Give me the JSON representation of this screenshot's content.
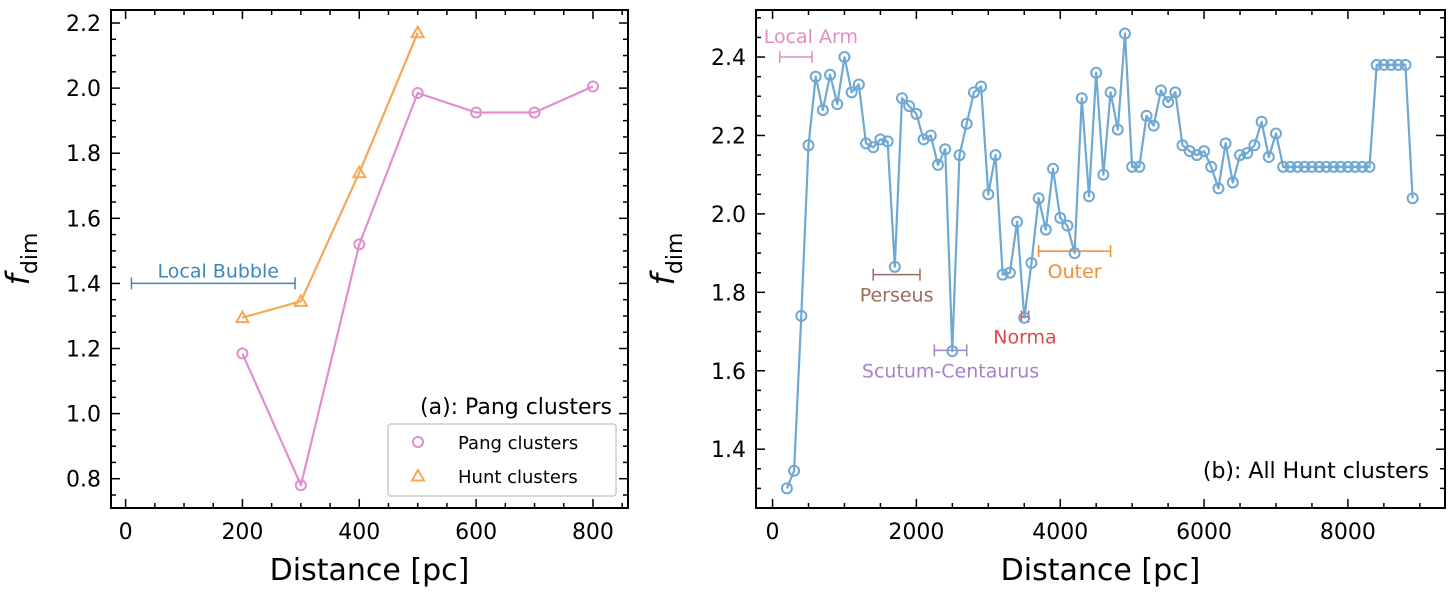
{
  "chart_data": [
    {
      "type": "line",
      "panel_label": "(a): Pang clusters",
      "xlabel": "Distance [pc]",
      "ylabel_main": "f",
      "ylabel_sub": "dim",
      "xlim": [
        -25,
        860
      ],
      "ylim": [
        0.71,
        2.24
      ],
      "xticks": [
        0,
        200,
        400,
        600,
        800
      ],
      "xtick_labels": [
        "0",
        "200",
        "400",
        "600",
        "800"
      ],
      "yticks": [
        0.8,
        1.0,
        1.2,
        1.4,
        1.6,
        1.8,
        2.0,
        2.2
      ],
      "ytick_labels": [
        "0.8",
        "1.0",
        "1.2",
        "1.4",
        "1.6",
        "1.8",
        "2.0",
        "2.2"
      ],
      "series": [
        {
          "name": "Pang clusters",
          "color": "#e08fd0",
          "marker": "circle",
          "x": [
            200,
            300,
            400,
            500,
            600,
            700,
            800
          ],
          "y": [
            1.185,
            0.78,
            1.52,
            1.985,
            1.925,
            1.925,
            2.005
          ]
        },
        {
          "name": "Hunt clusters",
          "color": "#f5a855",
          "marker": "triangle",
          "x": [
            200,
            300,
            400,
            500
          ],
          "y": [
            1.295,
            1.345,
            1.74,
            2.17
          ]
        }
      ],
      "annotations": [
        {
          "text": "Local Bubble",
          "color": "#3e86b8",
          "x_range": [
            10,
            290
          ],
          "y": 1.4
        }
      ],
      "legend": {
        "position": "bottom-right",
        "entries": [
          "Pang clusters",
          "Hunt clusters"
        ]
      }
    },
    {
      "type": "line",
      "panel_label": "(b): All Hunt clusters",
      "xlabel": "Distance [pc]",
      "ylabel_main": "f",
      "ylabel_sub": "dim",
      "xlim": [
        -230,
        9350
      ],
      "ylim": [
        1.25,
        2.52
      ],
      "xticks": [
        0,
        2000,
        4000,
        6000,
        8000
      ],
      "xtick_labels": [
        "0",
        "2000",
        "4000",
        "6000",
        "8000"
      ],
      "yticks": [
        1.4,
        1.6,
        1.8,
        2.0,
        2.2,
        2.4
      ],
      "ytick_labels": [
        "1.4",
        "1.6",
        "1.8",
        "2.0",
        "2.2",
        "2.4"
      ],
      "series": [
        {
          "name": "All Hunt clusters",
          "color": "#6fa8d2",
          "marker": "circle",
          "x": [
            200,
            300,
            400,
            500,
            600,
            700,
            800,
            900,
            1000,
            1100,
            1200,
            1300,
            1400,
            1500,
            1600,
            1700,
            1800,
            1900,
            2000,
            2100,
            2200,
            2300,
            2400,
            2500,
            2600,
            2700,
            2800,
            2900,
            3000,
            3100,
            3200,
            3300,
            3400,
            3500,
            3600,
            3700,
            3800,
            3900,
            4000,
            4100,
            4200,
            4300,
            4400,
            4500,
            4600,
            4700,
            4800,
            4900,
            5000,
            5100,
            5200,
            5300,
            5400,
            5500,
            5600,
            5700,
            5800,
            5900,
            6000,
            6100,
            6200,
            6300,
            6400,
            6500,
            6600,
            6700,
            6800,
            6900,
            7000,
            7100,
            7200,
            7300,
            7400,
            7500,
            7600,
            7700,
            7800,
            7900,
            8000,
            8100,
            8200,
            8300,
            8400,
            8500,
            8600,
            8700,
            8800,
            8900
          ],
          "y": [
            1.3,
            1.345,
            1.74,
            2.175,
            2.35,
            2.265,
            2.355,
            2.28,
            2.4,
            2.31,
            2.33,
            2.18,
            2.17,
            2.19,
            2.185,
            1.865,
            2.295,
            2.275,
            2.255,
            2.19,
            2.2,
            2.125,
            2.165,
            1.65,
            2.15,
            2.23,
            2.31,
            2.325,
            2.05,
            2.15,
            1.845,
            1.85,
            1.98,
            1.735,
            1.875,
            2.04,
            1.96,
            2.115,
            1.99,
            1.97,
            1.9,
            2.295,
            2.045,
            2.36,
            2.1,
            2.31,
            2.215,
            2.46,
            2.12,
            2.12,
            2.25,
            2.225,
            2.315,
            2.285,
            2.31,
            2.175,
            2.16,
            2.15,
            2.16,
            2.12,
            2.065,
            2.18,
            2.08,
            2.15,
            2.155,
            2.175,
            2.235,
            2.145,
            2.205,
            2.12,
            2.12,
            2.12,
            2.12,
            2.12,
            2.12,
            2.12,
            2.12,
            2.12,
            2.12,
            2.12,
            2.12,
            2.12,
            2.38,
            2.38,
            2.38,
            2.38,
            2.38,
            2.04
          ]
        }
      ],
      "annotations": [
        {
          "text": "Local Arm",
          "color": "#e68ac6",
          "x_range": [
            100,
            550
          ],
          "y": 2.4,
          "label_pos": "above"
        },
        {
          "text": "Perseus",
          "color": "#9c6b5e",
          "x_range": [
            1400,
            2050
          ],
          "y": 1.845,
          "label_pos": "below"
        },
        {
          "text": "Scutum-Centaurus",
          "color": "#a583c9",
          "x_range": [
            2250,
            2700
          ],
          "y": 1.652,
          "label_pos": "below"
        },
        {
          "text": "Norma",
          "color": "#d94b4b",
          "x_range": [
            3460,
            3560
          ],
          "y": 1.738,
          "label_pos": "below"
        },
        {
          "text": "Outer",
          "color": "#f28c2e",
          "x_range": [
            3700,
            4700
          ],
          "y": 1.905,
          "label_pos": "below"
        }
      ]
    }
  ]
}
